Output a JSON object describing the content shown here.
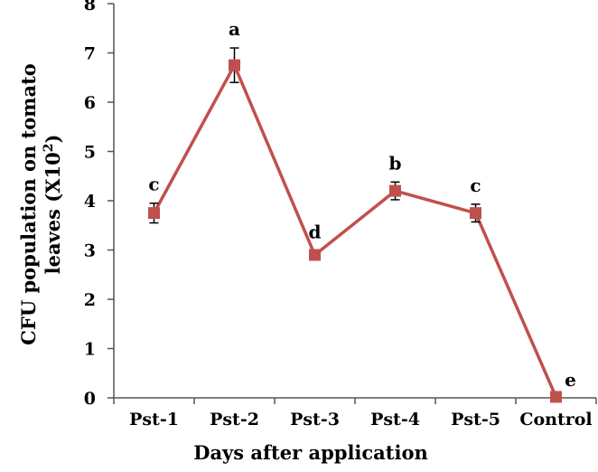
{
  "chart_data": {
    "type": "line",
    "categories": [
      "Pst-1",
      "Pst-2",
      "Pst-3",
      "Pst-4",
      "Pst-5",
      "Control"
    ],
    "series": [
      {
        "values": [
          3.75,
          6.75,
          2.9,
          4.2,
          3.75,
          0.02
        ],
        "errors": [
          0.2,
          0.35,
          0.08,
          0.18,
          0.18,
          0.0
        ],
        "significance": [
          "c",
          "a",
          "d",
          "b",
          "c",
          "e"
        ],
        "color": "#c0504d",
        "marker": "square"
      }
    ],
    "y_ticks": [
      "0",
      "1",
      "2",
      "3",
      "4",
      "5",
      "6",
      "7",
      "8"
    ],
    "ylim": [
      0,
      8
    ],
    "xlabel": "Days after application",
    "ylabel_line1": "CFU population on tomato",
    "ylabel_line2": "leaves (X10",
    "ylabel_sup": "2",
    "ylabel_close": ")",
    "grid": false
  }
}
